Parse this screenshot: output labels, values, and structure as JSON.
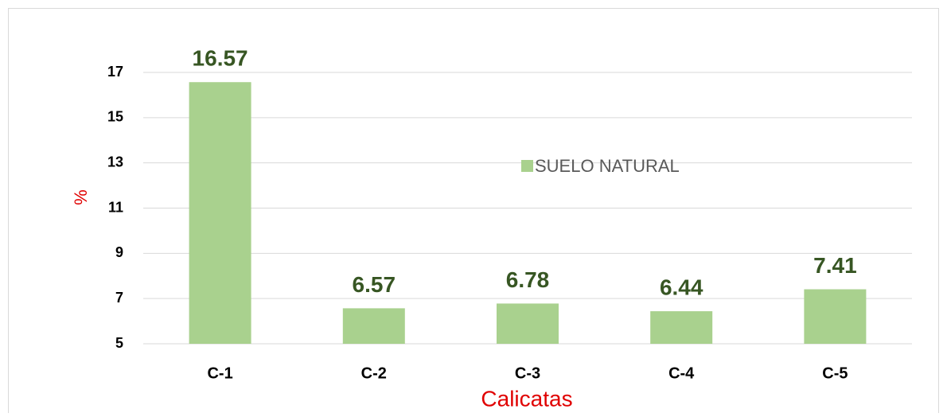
{
  "chart_data": {
    "type": "bar",
    "x_label": "Calicatas",
    "y_label": "%",
    "categories": [
      "C-1",
      "C-2",
      "C-3",
      "C-4",
      "C-5"
    ],
    "series": [
      {
        "name": "SUELO NATURAL",
        "color": "#a9d18e",
        "values": [
          16.57,
          6.57,
          6.78,
          6.44,
          7.41
        ]
      }
    ],
    "ylim": [
      5,
      17
    ],
    "yticks": [
      5,
      7,
      9,
      11,
      13,
      15,
      17
    ],
    "grid": true
  }
}
